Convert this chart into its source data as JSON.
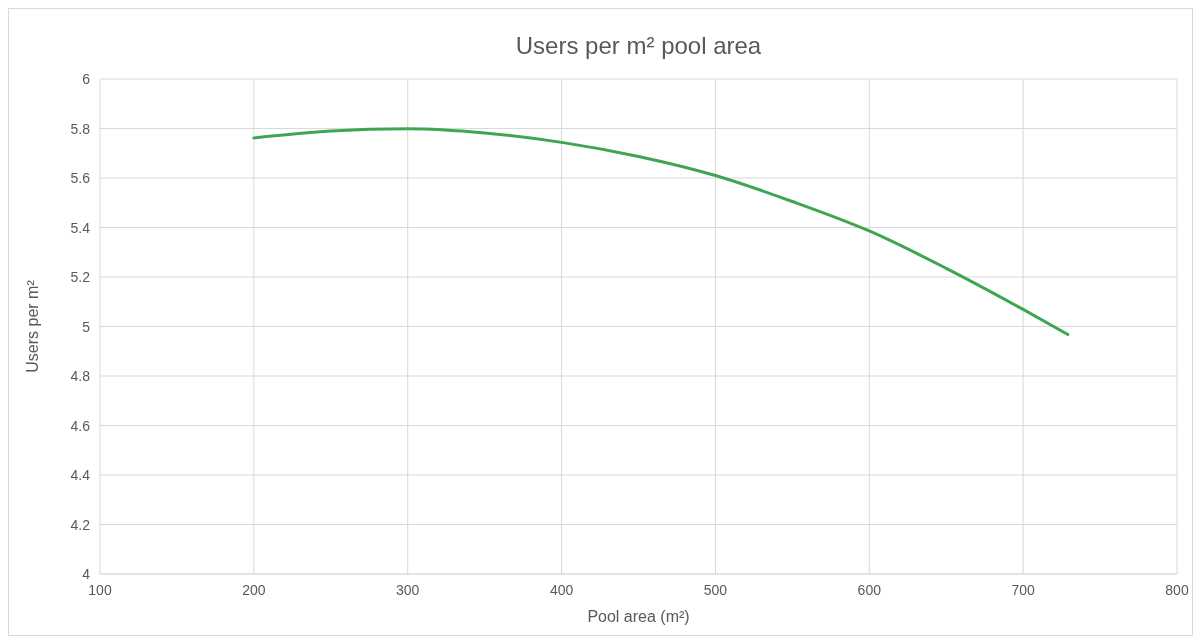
{
  "chart_data": {
    "type": "line",
    "title": "Users per m² pool area",
    "xlabel": "Pool area (m²)",
    "ylabel": "Users per m²",
    "x": [
      200,
      250,
      300,
      350,
      400,
      450,
      500,
      550,
      600,
      650,
      700,
      729
    ],
    "series": [
      {
        "color": "#3ea650",
        "values": [
          5.762,
          5.79,
          5.799,
          5.782,
          5.744,
          5.687,
          5.61,
          5.505,
          5.386,
          5.235,
          5.069,
          4.968
        ]
      }
    ],
    "xlim": [
      100,
      800
    ],
    "xticks": [
      100,
      200,
      300,
      400,
      500,
      600,
      700,
      800
    ],
    "ylim": [
      4,
      6
    ],
    "yticks": [
      {
        "value": 4,
        "label": "4"
      },
      {
        "value": 4.2,
        "label": "4.2"
      },
      {
        "value": 4.4,
        "label": "4.4"
      },
      {
        "value": 4.6,
        "label": "4.6"
      },
      {
        "value": 4.8,
        "label": "4.8"
      },
      {
        "value": 5,
        "label": "5"
      },
      {
        "value": 5.2,
        "label": "5.2"
      },
      {
        "value": 5.4,
        "label": "5.4"
      },
      {
        "value": 5.6,
        "label": "5.6"
      },
      {
        "value": 5.8,
        "label": "5.8"
      },
      {
        "value": 6,
        "label": "6"
      }
    ],
    "grid": true,
    "marker": "none",
    "line_style": "solid"
  }
}
